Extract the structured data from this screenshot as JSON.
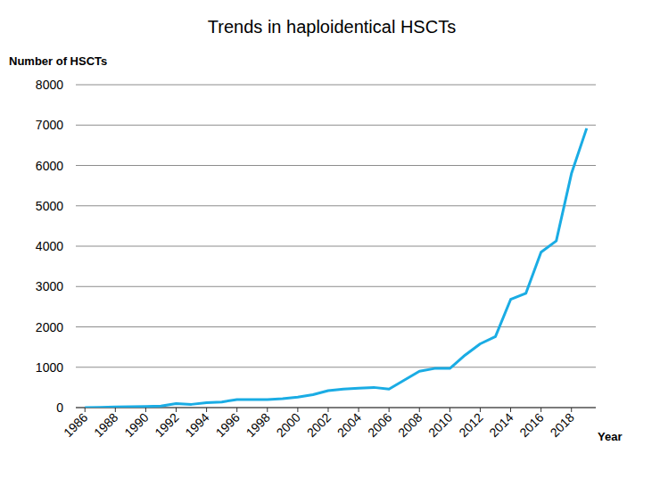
{
  "chart_data": {
    "type": "line",
    "title": "Trends in haploidentical HSCTs",
    "x_label": "Year",
    "y_label": "Number of HSCTs",
    "x": [
      1986,
      1987,
      1988,
      1989,
      1990,
      1991,
      1992,
      1993,
      1994,
      1995,
      1996,
      1997,
      1998,
      1999,
      2000,
      2001,
      2002,
      2003,
      2004,
      2005,
      2006,
      2007,
      2008,
      2009,
      2010,
      2011,
      2012,
      2013,
      2014,
      2015,
      2016,
      2017,
      2018,
      2019
    ],
    "values": [
      0,
      5,
      15,
      20,
      30,
      40,
      100,
      80,
      120,
      140,
      200,
      200,
      200,
      220,
      260,
      320,
      420,
      460,
      480,
      500,
      460,
      680,
      900,
      970,
      970,
      1300,
      1580,
      1760,
      2680,
      2830,
      3850,
      4130,
      5800,
      6920
    ],
    "color": "#1aace4",
    "xlim": [
      1985.4,
      2019.6
    ],
    "xticks": [
      1986,
      1988,
      1990,
      1992,
      1994,
      1996,
      1998,
      2000,
      2002,
      2004,
      2006,
      2008,
      2010,
      2012,
      2014,
      2016,
      2018
    ],
    "ylim": [
      0,
      8000
    ],
    "yticks": [
      0,
      1000,
      2000,
      3000,
      4000,
      5000,
      6000,
      7000,
      8000
    ],
    "grid": true
  }
}
